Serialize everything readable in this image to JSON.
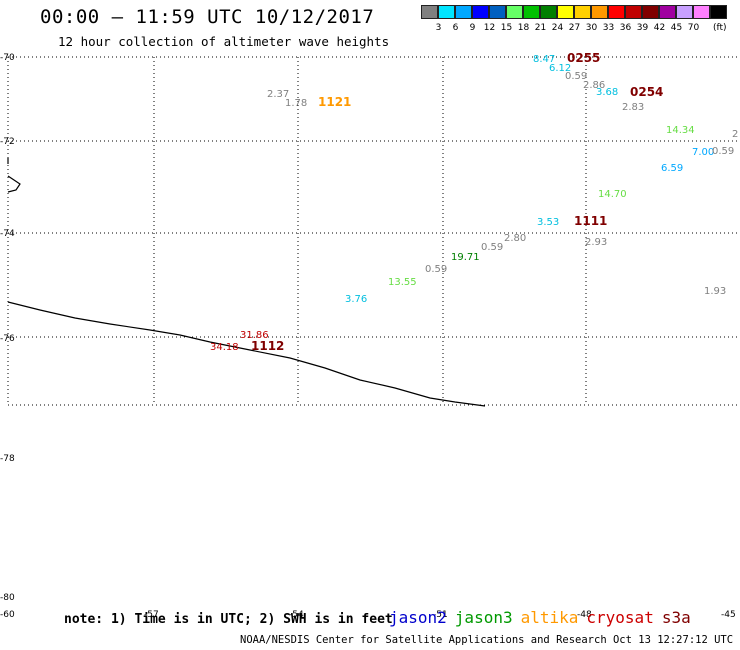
{
  "title": "00:00 – 11:59 UTC 10/12/2017",
  "subtitle": "12 hour collection of altimeter wave heights",
  "legend": {
    "unit": "(ft)",
    "items": [
      {
        "label": "",
        "color": "#808080"
      },
      {
        "label": "3",
        "color": "#00e5ff"
      },
      {
        "label": "6",
        "color": "#00a8ff"
      },
      {
        "label": "9",
        "color": "#0000ff"
      },
      {
        "label": "12",
        "color": "#0060c0"
      },
      {
        "label": "15",
        "color": "#66ff66"
      },
      {
        "label": "18",
        "color": "#00c000"
      },
      {
        "label": "21",
        "color": "#008000"
      },
      {
        "label": "24",
        "color": "#ffff00"
      },
      {
        "label": "27",
        "color": "#ffd000"
      },
      {
        "label": "30",
        "color": "#ff9900"
      },
      {
        "label": "33",
        "color": "#ff0000"
      },
      {
        "label": "36",
        "color": "#c00000"
      },
      {
        "label": "39",
        "color": "#800000"
      },
      {
        "label": "42",
        "color": "#a000a0"
      },
      {
        "label": "45",
        "color": "#c8a0ff"
      },
      {
        "label": "70",
        "color": "#ff80ff"
      },
      {
        "label": "",
        "color": "#000000"
      }
    ]
  },
  "lat_labels": [
    "-70",
    "-72",
    "-74",
    "-76",
    "-78",
    "-80"
  ],
  "lon_labels": [
    "-60",
    "-57",
    "-54",
    "-51",
    "-48",
    "-45"
  ],
  "values": [
    {
      "text": "8.47",
      "color": "#00bfdf"
    },
    {
      "text": "0255",
      "color": "#800000",
      "time": true
    },
    {
      "text": "6.12",
      "color": "#00bfdf"
    },
    {
      "text": "0.59",
      "color": "#808080"
    },
    {
      "text": "2.86",
      "color": "#808080"
    },
    {
      "text": "3.68",
      "color": "#00bfdf"
    },
    {
      "text": "0254",
      "color": "#800000",
      "time": true
    },
    {
      "text": "2.83",
      "color": "#808080"
    },
    {
      "text": "2.37",
      "color": "#808080"
    },
    {
      "text": "1.78",
      "color": "#808080"
    },
    {
      "text": "1121",
      "color": "#ff9900",
      "time": true
    },
    {
      "text": "14.34",
      "color": "#66dd44"
    },
    {
      "text": "2",
      "color": "#808080"
    },
    {
      "text": "7.00",
      "color": "#00a8ff"
    },
    {
      "text": "0.59",
      "color": "#808080"
    },
    {
      "text": "6.59",
      "color": "#00a8ff"
    },
    {
      "text": "14.70",
      "color": "#66dd44"
    },
    {
      "text": "3.53",
      "color": "#00bfdf"
    },
    {
      "text": "1111",
      "color": "#800000",
      "time": true
    },
    {
      "text": "2.80",
      "color": "#808080"
    },
    {
      "text": "2.93",
      "color": "#808080"
    },
    {
      "text": "0.59",
      "color": "#808080"
    },
    {
      "text": "19.71",
      "color": "#008000"
    },
    {
      "text": "0.59",
      "color": "#808080"
    },
    {
      "text": "13.55",
      "color": "#66dd44"
    },
    {
      "text": "3.76",
      "color": "#00bfdf"
    },
    {
      "text": "1.93",
      "color": "#808080"
    },
    {
      "text": "31.86",
      "color": "#c00000"
    },
    {
      "text": "34.18",
      "color": "#c00000"
    },
    {
      "text": "1112",
      "color": "#800000",
      "time": true
    }
  ],
  "note": "note: 1) Time is in UTC; 2) SWH is in feet",
  "satellites": [
    {
      "name": "jason2",
      "color": "#0000cc"
    },
    {
      "name": "jason3",
      "color": "#009900"
    },
    {
      "name": "altika",
      "color": "#ff9900"
    },
    {
      "name": "cryosat",
      "color": "#cc0000"
    },
    {
      "name": "s3a",
      "color": "#800000"
    }
  ],
  "credit": "NOAA/NESDIS Center for Satellite Applications and Research     Oct 13 12:27:12 UTC 2017"
}
